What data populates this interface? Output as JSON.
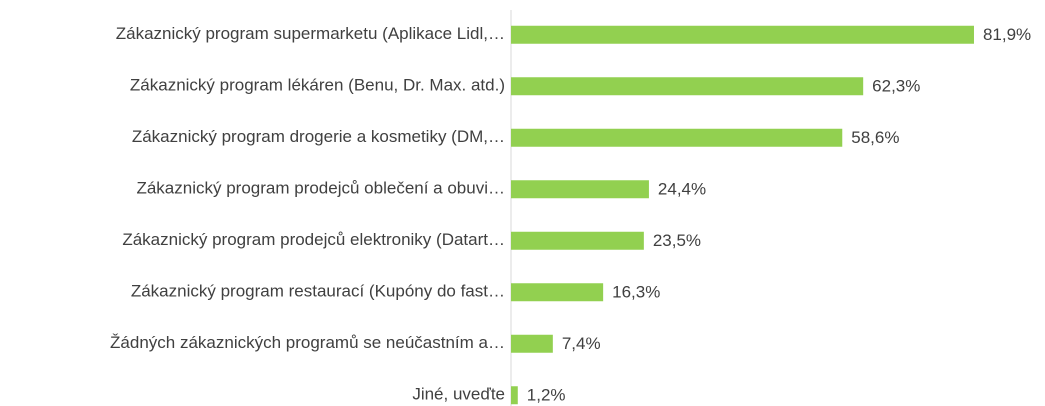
{
  "chart_data": {
    "type": "bar",
    "orientation": "horizontal",
    "categories": [
      "Zákaznický program supermarketu (Aplikace Lidl,…",
      "Zákaznický program lékáren (Benu, Dr. Max. atd.)",
      "Zákaznický program drogerie a kosmetiky (DM,…",
      "Zákaznický program prodejců oblečení a obuvi…",
      "Zákaznický program prodejců elektroniky (Datart…",
      "Zákaznický program restaurací (Kupóny do fast…",
      "Žádných zákaznických programů se neúčastním a…",
      "Jiné, uveďte"
    ],
    "values": [
      81.9,
      62.3,
      58.6,
      24.4,
      23.5,
      16.3,
      7.4,
      1.2
    ],
    "value_labels": [
      "81,9%",
      "62,3%",
      "58,6%",
      "24,4%",
      "23,5%",
      "16,3%",
      "7,4%",
      "1,2%"
    ],
    "color": "#92d050"
  }
}
